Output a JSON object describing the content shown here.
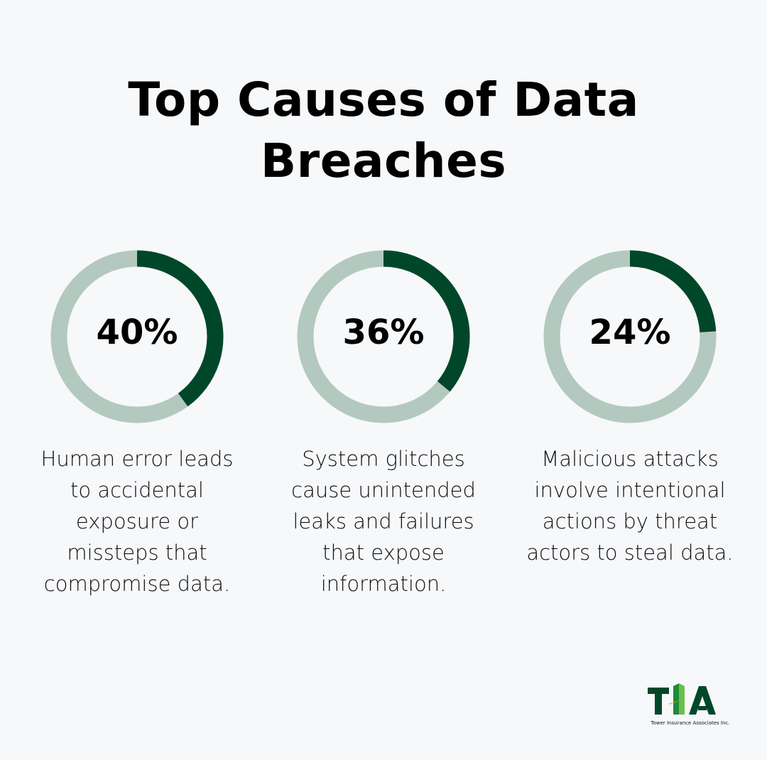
{
  "title": "Top Causes of Data Breaches",
  "colors": {
    "filled": "#00472a",
    "track": "#b3c9bf",
    "background": "#f7f8fa"
  },
  "chart_data": {
    "type": "donut",
    "items": [
      {
        "value": 40,
        "label": "40%",
        "description": "Human error leads to accidental exposure or missteps that compromise data."
      },
      {
        "value": 36,
        "label": "36%",
        "description": "System glitches cause unintended leaks and failures that expose information."
      },
      {
        "value": 24,
        "label": "24%",
        "description": "Malicious attacks involve intentional actions by threat actors to steal data."
      }
    ]
  },
  "logo": {
    "text": "TIA",
    "tagline": "Tower Insurance Associates Inc."
  }
}
